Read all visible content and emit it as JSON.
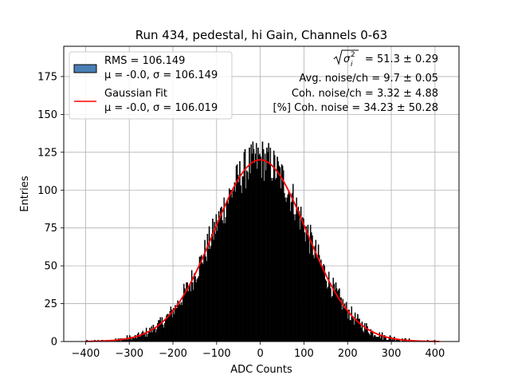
{
  "chart_data": {
    "type": "bar",
    "title": "Run 434, pedestal, hi Gain, Channels 0-63",
    "xlabel": "ADC Counts",
    "ylabel": "Entries",
    "xlim": [
      -450,
      455
    ],
    "ylim": [
      0,
      195
    ],
    "xticks": [
      -400,
      -300,
      -200,
      -100,
      0,
      100,
      200,
      300,
      400
    ],
    "yticks": [
      0,
      25,
      50,
      75,
      100,
      125,
      150,
      175
    ],
    "grid": true,
    "legend_position": "top-left",
    "histogram": {
      "name_line1": "RMS = 106.149",
      "name_line2": "μ = -0.0, σ = 106.149",
      "color": "#000000",
      "legend_patch_color": "#4a7fb5",
      "bin_range": [
        -410,
        410
      ],
      "bin_width": 2,
      "mu": 0.0,
      "sigma": 106.149,
      "peak_height": 120
    },
    "fit": {
      "name_line1": "Gaussian Fit",
      "name_line2": "μ = -0.0, σ = 106.019",
      "color": "#ff0000",
      "mu": 0.0,
      "sigma": 106.019,
      "amplitude": 120,
      "x_range": [
        -400,
        410
      ]
    },
    "stats": {
      "line1_suffix": " = 51.3 ± 0.29",
      "line2": "Avg. noise/ch = 9.7 ± 0.05",
      "line3": "Coh. noise/ch = 3.32 ± 4.88",
      "line4": "[%] Coh. noise = 34.23 ± 50.28"
    }
  }
}
